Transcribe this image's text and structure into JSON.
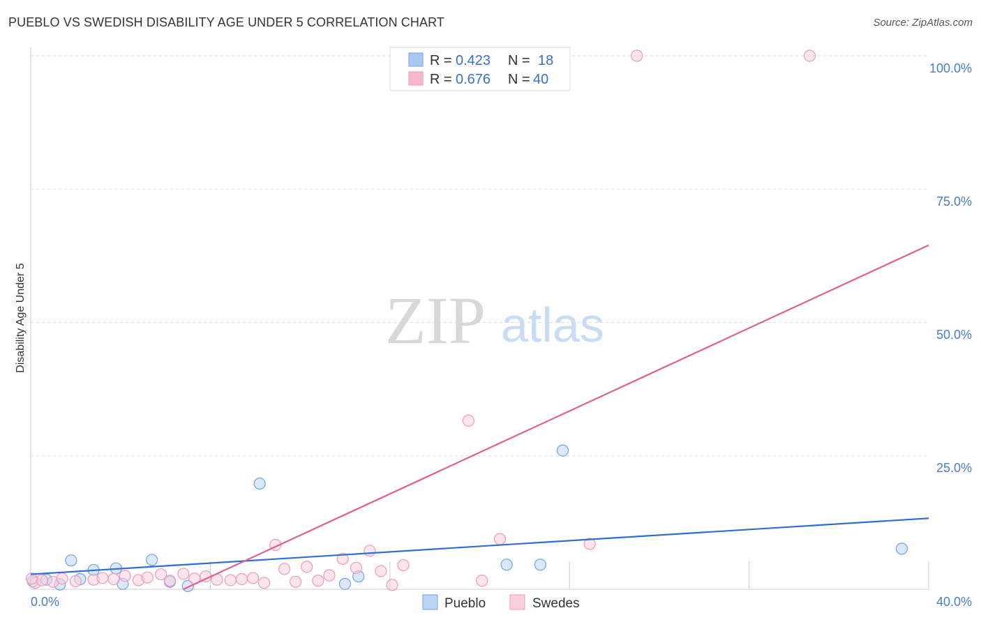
{
  "header": {
    "title": "PUEBLO VS SWEDISH DISABILITY AGE UNDER 5 CORRELATION CHART",
    "source": "Source: ZipAtlas.com"
  },
  "watermark": {
    "part1": "ZIP",
    "part2": "atlas"
  },
  "legend": {
    "rows": [
      {
        "r_label": "R =",
        "r_value": "0.423",
        "n_label": "N =",
        "n_value": "18",
        "color": "#aac8f0"
      },
      {
        "r_label": "R =",
        "r_value": "0.676",
        "n_label": "N =",
        "n_value": "40",
        "color": "#f8b8cc"
      }
    ]
  },
  "chart_data": {
    "type": "scatter",
    "title": "PUEBLO VS SWEDISH DISABILITY AGE UNDER 5 CORRELATION CHART",
    "xlabel": "",
    "ylabel": "Disability Age Under 5",
    "xlim": [
      0,
      40
    ],
    "ylim": [
      0,
      100
    ],
    "x_tick_labels": [
      "0.0%",
      "40.0%"
    ],
    "y_ticks": [
      25,
      50,
      75,
      100
    ],
    "y_tick_labels": [
      "25.0%",
      "50.0%",
      "75.0%",
      "100.0%"
    ],
    "grid": true,
    "legend_position": "top-center",
    "series": [
      {
        "name": "Pueblo",
        "color": "#6fa3e6",
        "fill": "#bcd5f5",
        "line_color": "#2f6fcf",
        "trend": [
          [
            0,
            2.8
          ],
          [
            40,
            13.3
          ]
        ],
        "points": [
          [
            0.1,
            1.5
          ],
          [
            0.7,
            1.8
          ],
          [
            1.3,
            0.9
          ],
          [
            1.8,
            5.4
          ],
          [
            2.2,
            1.9
          ],
          [
            2.8,
            3.6
          ],
          [
            3.8,
            3.9
          ],
          [
            4.1,
            1.0
          ],
          [
            5.4,
            5.5
          ],
          [
            6.2,
            1.4
          ],
          [
            7.0,
            0.6
          ],
          [
            10.2,
            19.8
          ],
          [
            14.0,
            1.0
          ],
          [
            14.6,
            2.4
          ],
          [
            21.2,
            4.6
          ],
          [
            22.7,
            4.6
          ],
          [
            23.7,
            26.0
          ],
          [
            38.8,
            7.6
          ]
        ]
      },
      {
        "name": "Swedes",
        "color": "#f09ab5",
        "fill": "#fad0dc",
        "line_color": "#e0608a",
        "trend": [
          [
            6.8,
            0
          ],
          [
            40,
            64.5
          ]
        ],
        "points": [
          [
            0.2,
            1.2
          ],
          [
            0.5,
            1.7
          ],
          [
            1.0,
            1.4
          ],
          [
            1.4,
            2.0
          ],
          [
            2.0,
            1.5
          ],
          [
            2.8,
            1.8
          ],
          [
            3.2,
            2.1
          ],
          [
            3.7,
            1.9
          ],
          [
            4.2,
            2.5
          ],
          [
            4.8,
            1.7
          ],
          [
            5.2,
            2.2
          ],
          [
            5.8,
            2.8
          ],
          [
            6.2,
            1.6
          ],
          [
            6.8,
            2.9
          ],
          [
            7.3,
            2.0
          ],
          [
            7.8,
            2.4
          ],
          [
            8.3,
            1.8
          ],
          [
            8.9,
            1.7
          ],
          [
            9.4,
            1.9
          ],
          [
            9.9,
            2.1
          ],
          [
            10.4,
            1.2
          ],
          [
            10.9,
            8.3
          ],
          [
            11.3,
            3.8
          ],
          [
            11.8,
            1.4
          ],
          [
            12.3,
            4.2
          ],
          [
            12.8,
            1.6
          ],
          [
            13.3,
            2.6
          ],
          [
            13.9,
            5.7
          ],
          [
            14.5,
            4.0
          ],
          [
            15.1,
            7.2
          ],
          [
            15.6,
            3.4
          ],
          [
            16.1,
            0.8
          ],
          [
            16.6,
            4.5
          ],
          [
            19.5,
            31.6
          ],
          [
            20.1,
            1.6
          ],
          [
            20.9,
            9.4
          ],
          [
            24.9,
            8.5
          ],
          [
            27.0,
            100.0
          ],
          [
            34.7,
            100.0
          ],
          [
            0.05,
            2.0
          ]
        ]
      }
    ]
  }
}
